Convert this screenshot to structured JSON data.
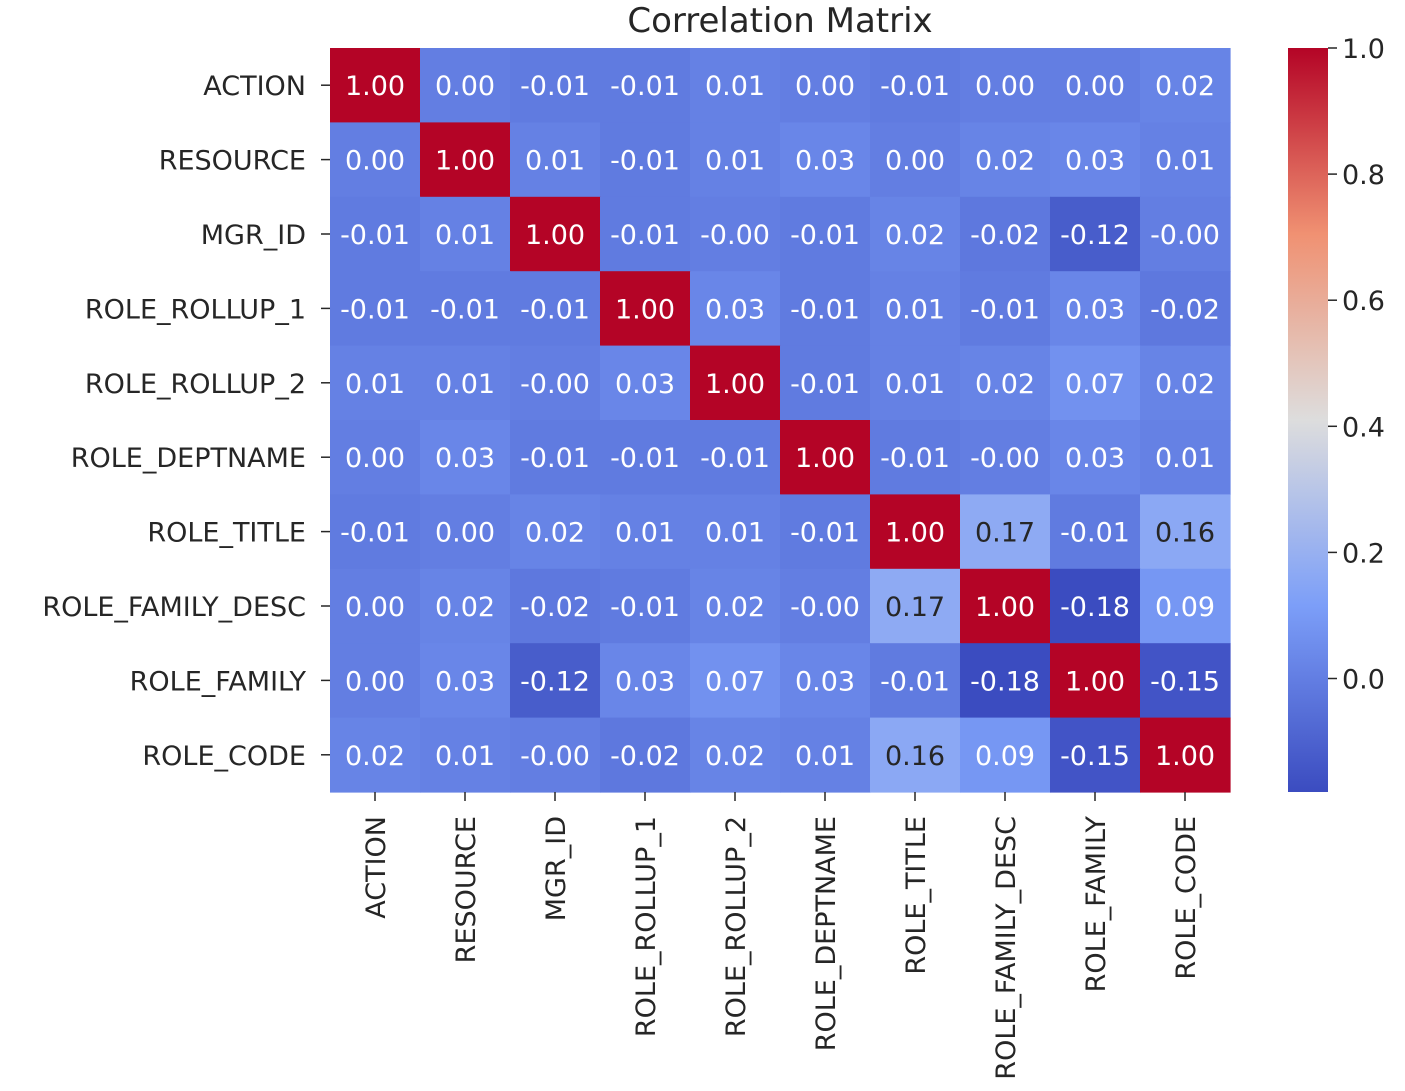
{
  "chart_data": {
    "type": "heatmap",
    "title": "Correlation Matrix",
    "labels": [
      "ACTION",
      "RESOURCE",
      "MGR_ID",
      "ROLE_ROLLUP_1",
      "ROLE_ROLLUP_2",
      "ROLE_DEPTNAME",
      "ROLE_TITLE",
      "ROLE_FAMILY_DESC",
      "ROLE_FAMILY",
      "ROLE_CODE"
    ],
    "values": [
      [
        1.0,
        0.0,
        -0.01,
        -0.01,
        0.01,
        0.0,
        -0.01,
        0.0,
        0.0,
        0.02
      ],
      [
        0.0,
        1.0,
        0.01,
        -0.01,
        0.01,
        0.03,
        0.0,
        0.02,
        0.03,
        0.01
      ],
      [
        -0.01,
        0.01,
        1.0,
        -0.01,
        -0.0,
        -0.01,
        0.02,
        -0.02,
        -0.12,
        -0.0
      ],
      [
        -0.01,
        -0.01,
        -0.01,
        1.0,
        0.03,
        -0.01,
        0.01,
        -0.01,
        0.03,
        -0.02
      ],
      [
        0.01,
        0.01,
        -0.0,
        0.03,
        1.0,
        -0.01,
        0.01,
        0.02,
        0.07,
        0.02
      ],
      [
        0.0,
        0.03,
        -0.01,
        -0.01,
        -0.01,
        1.0,
        -0.01,
        -0.0,
        0.03,
        0.01
      ],
      [
        -0.01,
        0.0,
        0.02,
        0.01,
        0.01,
        -0.01,
        1.0,
        0.17,
        -0.01,
        0.16
      ],
      [
        0.0,
        0.02,
        -0.02,
        -0.01,
        0.02,
        -0.0,
        0.17,
        1.0,
        -0.18,
        0.09
      ],
      [
        0.0,
        0.03,
        -0.12,
        0.03,
        0.07,
        0.03,
        -0.01,
        -0.18,
        1.0,
        -0.15
      ],
      [
        0.02,
        0.01,
        -0.0,
        -0.02,
        0.02,
        0.01,
        0.16,
        0.09,
        -0.15,
        1.0
      ]
    ],
    "value_labels": [
      [
        "1.00",
        "0.00",
        "-0.01",
        "-0.01",
        "0.01",
        "0.00",
        "-0.01",
        "0.00",
        "0.00",
        "0.02"
      ],
      [
        "0.00",
        "1.00",
        "0.01",
        "-0.01",
        "0.01",
        "0.03",
        "0.00",
        "0.02",
        "0.03",
        "0.01"
      ],
      [
        "-0.01",
        "0.01",
        "1.00",
        "-0.01",
        "-0.00",
        "-0.01",
        "0.02",
        "-0.02",
        "-0.12",
        "-0.00"
      ],
      [
        "-0.01",
        "-0.01",
        "-0.01",
        "1.00",
        "0.03",
        "-0.01",
        "0.01",
        "-0.01",
        "0.03",
        "-0.02"
      ],
      [
        "0.01",
        "0.01",
        "-0.00",
        "0.03",
        "1.00",
        "-0.01",
        "0.01",
        "0.02",
        "0.07",
        "0.02"
      ],
      [
        "0.00",
        "0.03",
        "-0.01",
        "-0.01",
        "-0.01",
        "1.00",
        "-0.01",
        "-0.00",
        "0.03",
        "0.01"
      ],
      [
        "-0.01",
        "0.00",
        "0.02",
        "0.01",
        "0.01",
        "-0.01",
        "1.00",
        "0.17",
        "-0.01",
        "0.16"
      ],
      [
        "0.00",
        "0.02",
        "-0.02",
        "-0.01",
        "0.02",
        "-0.00",
        "0.17",
        "1.00",
        "-0.18",
        "0.09"
      ],
      [
        "0.00",
        "0.03",
        "-0.12",
        "0.03",
        "0.07",
        "0.03",
        "-0.01",
        "-0.18",
        "1.00",
        "-0.15"
      ],
      [
        "0.02",
        "0.01",
        "-0.00",
        "-0.02",
        "0.02",
        "0.01",
        "0.16",
        "0.09",
        "-0.15",
        "1.00"
      ]
    ],
    "colormap": "coolwarm",
    "vmin": -0.18,
    "vmax": 1.0,
    "colorbar_ticks": [
      0.0,
      0.2,
      0.4,
      0.6,
      0.8,
      1.0
    ],
    "colorbar_tick_labels": [
      "0.0",
      "0.2",
      "0.4",
      "0.6",
      "0.8",
      "1.0"
    ],
    "colorbar_position": "right",
    "grid": false
  }
}
